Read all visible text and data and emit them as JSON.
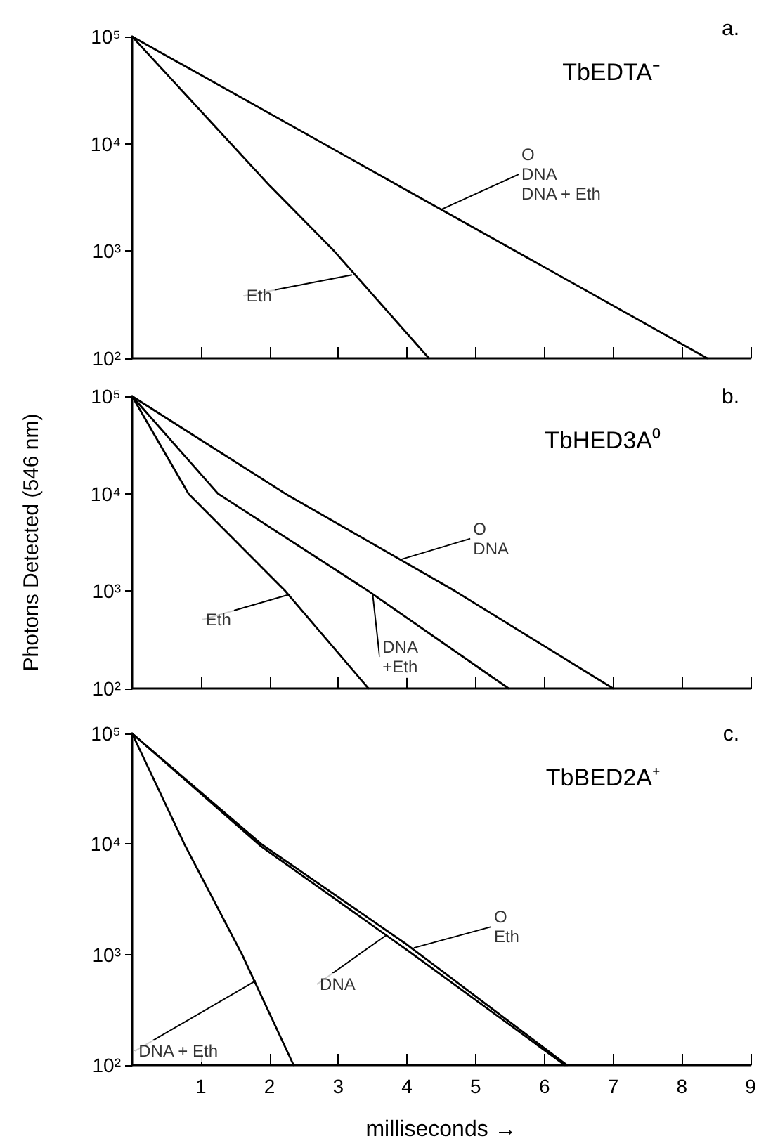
{
  "chart_data": [
    {
      "type": "line",
      "title": "TbEDTA⁻",
      "subtitle": "a.",
      "log": "y",
      "grid": false,
      "marker": "none",
      "line_style": "solid",
      "tick_labels": "y",
      "xlim": [
        0,
        9
      ],
      "xticks": [
        1,
        2,
        3,
        4,
        5,
        6,
        7,
        8,
        9
      ],
      "ylim": [
        100,
        100000
      ],
      "yticks": [
        {
          "value": 100,
          "label": "10²"
        },
        {
          "value": 1000,
          "label": "10³"
        },
        {
          "value": 10000,
          "label": "10⁴"
        },
        {
          "value": 100000,
          "label": "10⁵"
        }
      ],
      "series": [
        {
          "color": "#000000",
          "x": [
            0,
            4,
            8.37
          ],
          "values": [
            100000,
            3680,
            100
          ]
        },
        {
          "color": "#000000",
          "x": [
            0,
            2,
            2.94,
            4.32
          ],
          "values": [
            100000,
            4080,
            1000,
            100
          ]
        }
      ],
      "annotations": [
        {
          "text": "O\nDNA\nDNA + Eth",
          "x": 4.5,
          "y": 2440
        },
        {
          "text": "Eth",
          "x": 3.2,
          "y": 600
        }
      ]
    },
    {
      "type": "line",
      "title": "TbHED3A⁰",
      "subtitle": "b.",
      "ylabel": "Photons Detected (546 nm)",
      "log": "y",
      "grid": false,
      "marker": "none",
      "line_style": "solid",
      "tick_labels": "y",
      "xlim": [
        0,
        9
      ],
      "xticks": [
        1,
        2,
        3,
        4,
        5,
        6,
        7,
        8,
        9
      ],
      "ylim": [
        100,
        100000
      ],
      "yticks": [
        {
          "value": 100,
          "label": "10²"
        },
        {
          "value": 1000,
          "label": "10³"
        },
        {
          "value": 10000,
          "label": "10⁴"
        },
        {
          "value": 100000,
          "label": "10⁵"
        }
      ],
      "series": [
        {
          "color": "#000000",
          "x": [
            0,
            2.23,
            4.7,
            7.0
          ],
          "values": [
            100000,
            10000,
            1000,
            100
          ]
        },
        {
          "color": "#000000",
          "x": [
            0,
            1.25,
            3.44,
            5.48
          ],
          "values": [
            100000,
            10000,
            1000,
            100
          ]
        },
        {
          "color": "#000000",
          "x": [
            0,
            0.82,
            2.23,
            3.44
          ],
          "values": [
            100000,
            10000,
            1000,
            100
          ]
        }
      ],
      "annotations": [
        {
          "text": "O\nDNA",
          "x": 3.9,
          "y": 2100
        },
        {
          "text": "DNA\n+Eth",
          "x": 3.5,
          "y": 940
        },
        {
          "text": "Eth",
          "x": 2.3,
          "y": 930
        }
      ]
    },
    {
      "type": "line",
      "title": "TbBED2A⁺",
      "subtitle": "c.",
      "xlabel": "milliseconds →",
      "log": "y",
      "grid": false,
      "marker": "none",
      "line_style": "solid",
      "xlim": [
        0,
        9
      ],
      "xticks": [
        1,
        2,
        3,
        4,
        5,
        6,
        7,
        8,
        9
      ],
      "ylim": [
        100,
        100000
      ],
      "yticks": [
        {
          "value": 100,
          "label": "10²"
        },
        {
          "value": 1000,
          "label": "10³"
        },
        {
          "value": 10000,
          "label": "10⁴"
        },
        {
          "value": 100000,
          "label": "10⁵"
        }
      ],
      "series": [
        {
          "color": "#000000",
          "x": [
            0,
            1.88,
            4,
            6.33
          ],
          "values": [
            100000,
            10000,
            1230,
            100
          ]
        },
        {
          "color": "#000000",
          "x": [
            0,
            1.88,
            4,
            6.3
          ],
          "values": [
            100000,
            9500,
            1100,
            100
          ]
        },
        {
          "color": "#000000",
          "x": [
            0,
            0.76,
            1.6,
            2.35
          ],
          "values": [
            100000,
            10000,
            1000,
            100
          ]
        }
      ],
      "annotations": [
        {
          "text": "O\nEth",
          "x": 4.1,
          "y": 1150
        },
        {
          "text": "DNA",
          "x": 3.7,
          "y": 1500
        },
        {
          "text": "DNA + Eth",
          "x": 1.8,
          "y": 580
        }
      ]
    }
  ]
}
